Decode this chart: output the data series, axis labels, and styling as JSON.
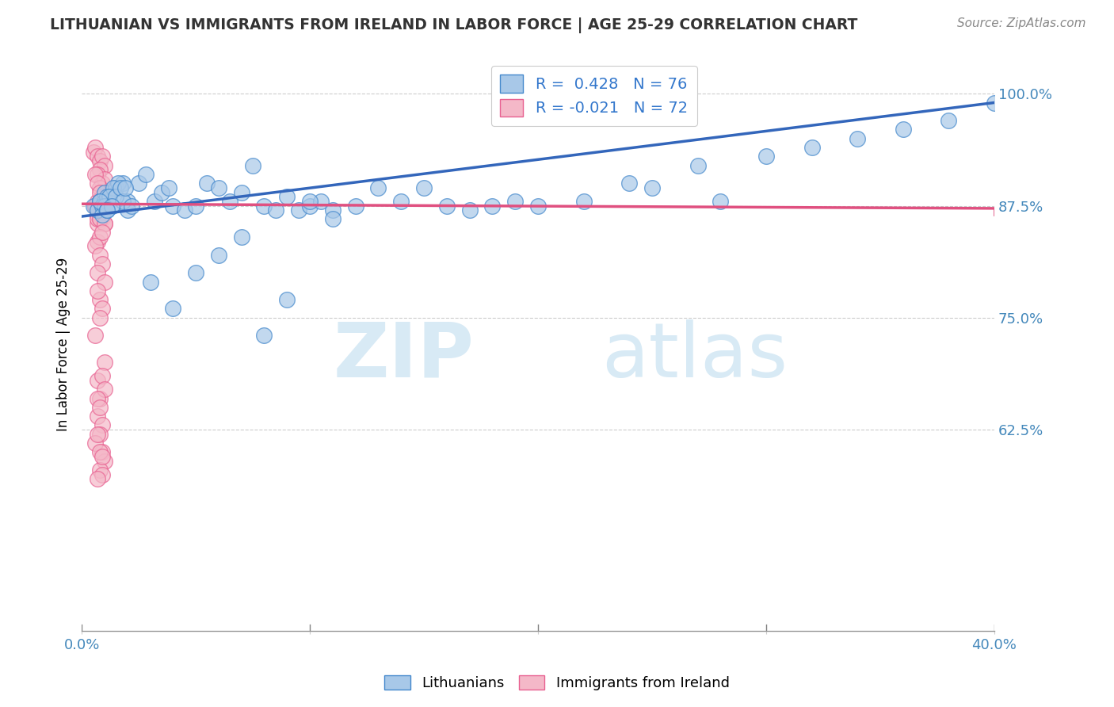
{
  "title": "LITHUANIAN VS IMMIGRANTS FROM IRELAND IN LABOR FORCE | AGE 25-29 CORRELATION CHART",
  "source": "Source: ZipAtlas.com",
  "ylabel": "In Labor Force | Age 25-29",
  "xlim": [
    0.0,
    0.4
  ],
  "ylim": [
    0.4,
    1.04
  ],
  "yticks": [
    1.0,
    0.875,
    0.75,
    0.625
  ],
  "ytick_labels": [
    "100.0%",
    "87.5%",
    "75.0%",
    "62.5%"
  ],
  "xtick_pos": [
    0.0,
    0.1,
    0.2,
    0.3,
    0.4
  ],
  "xtick_labels": [
    "0.0%",
    "",
    "",
    "",
    "40.0%"
  ],
  "blue_R": 0.428,
  "blue_N": 76,
  "pink_R": -0.021,
  "pink_N": 72,
  "blue_fill": "#a8c8e8",
  "pink_fill": "#f4b8c8",
  "blue_edge": "#4488cc",
  "pink_edge": "#e86090",
  "blue_line": "#3366bb",
  "pink_line": "#e05080",
  "title_color": "#333333",
  "axis_color": "#4488bb",
  "grid_color": "#cccccc",
  "legend_text_color": "#3377cc",
  "blue_scatter_x": [
    0.005,
    0.008,
    0.01,
    0.012,
    0.007,
    0.015,
    0.01,
    0.018,
    0.009,
    0.011,
    0.02,
    0.016,
    0.013,
    0.009,
    0.014,
    0.012,
    0.01,
    0.008,
    0.011,
    0.015,
    0.017,
    0.02,
    0.025,
    0.018,
    0.013,
    0.011,
    0.019,
    0.022,
    0.028,
    0.032,
    0.035,
    0.04,
    0.038,
    0.045,
    0.05,
    0.055,
    0.06,
    0.065,
    0.07,
    0.075,
    0.08,
    0.085,
    0.09,
    0.095,
    0.1,
    0.105,
    0.11,
    0.12,
    0.13,
    0.14,
    0.15,
    0.16,
    0.17,
    0.18,
    0.19,
    0.2,
    0.22,
    0.24,
    0.25,
    0.27,
    0.28,
    0.3,
    0.32,
    0.34,
    0.36,
    0.38,
    0.4,
    0.03,
    0.04,
    0.05,
    0.06,
    0.07,
    0.08,
    0.09,
    0.1,
    0.11
  ],
  "blue_scatter_y": [
    0.875,
    0.88,
    0.89,
    0.885,
    0.87,
    0.895,
    0.88,
    0.9,
    0.875,
    0.885,
    0.88,
    0.9,
    0.875,
    0.865,
    0.895,
    0.885,
    0.875,
    0.88,
    0.87,
    0.885,
    0.895,
    0.87,
    0.9,
    0.88,
    0.875,
    0.87,
    0.895,
    0.875,
    0.91,
    0.88,
    0.89,
    0.875,
    0.895,
    0.87,
    0.875,
    0.9,
    0.895,
    0.88,
    0.89,
    0.92,
    0.875,
    0.87,
    0.885,
    0.87,
    0.875,
    0.88,
    0.87,
    0.875,
    0.895,
    0.88,
    0.895,
    0.875,
    0.87,
    0.875,
    0.88,
    0.875,
    0.88,
    0.9,
    0.895,
    0.92,
    0.88,
    0.93,
    0.94,
    0.95,
    0.96,
    0.97,
    0.99,
    0.79,
    0.76,
    0.8,
    0.82,
    0.84,
    0.73,
    0.77,
    0.88,
    0.86
  ],
  "pink_scatter_x": [
    0.005,
    0.006,
    0.007,
    0.008,
    0.009,
    0.01,
    0.008,
    0.007,
    0.009,
    0.01,
    0.006,
    0.008,
    0.007,
    0.009,
    0.008,
    0.01,
    0.009,
    0.007,
    0.008,
    0.006,
    0.009,
    0.008,
    0.007,
    0.01,
    0.008,
    0.009,
    0.007,
    0.008,
    0.009,
    0.01,
    0.007,
    0.008,
    0.009,
    0.006,
    0.01,
    0.008,
    0.007,
    0.009,
    0.008,
    0.01,
    0.007,
    0.008,
    0.009,
    0.006,
    0.008,
    0.009,
    0.007,
    0.01,
    0.008,
    0.007,
    0.009,
    0.008,
    0.006,
    0.01,
    0.007,
    0.009,
    0.008,
    0.007,
    0.009,
    0.008,
    0.01,
    0.007,
    0.008,
    0.009,
    0.006,
    0.01,
    0.008,
    0.009,
    0.007,
    0.008,
    0.009,
    0.007
  ],
  "pink_scatter_y": [
    0.935,
    0.94,
    0.93,
    0.925,
    0.93,
    0.92,
    0.915,
    0.91,
    0.9,
    0.905,
    0.91,
    0.895,
    0.9,
    0.885,
    0.88,
    0.875,
    0.87,
    0.88,
    0.86,
    0.875,
    0.86,
    0.89,
    0.855,
    0.87,
    0.88,
    0.875,
    0.865,
    0.88,
    0.87,
    0.875,
    0.87,
    0.865,
    0.88,
    0.875,
    0.855,
    0.86,
    0.86,
    0.87,
    0.86,
    0.855,
    0.835,
    0.84,
    0.845,
    0.83,
    0.82,
    0.81,
    0.8,
    0.79,
    0.77,
    0.78,
    0.76,
    0.75,
    0.73,
    0.7,
    0.68,
    0.685,
    0.66,
    0.64,
    0.63,
    0.62,
    0.67,
    0.66,
    0.65,
    0.6,
    0.61,
    0.59,
    0.58,
    0.575,
    0.62,
    0.6,
    0.595,
    0.57
  ]
}
